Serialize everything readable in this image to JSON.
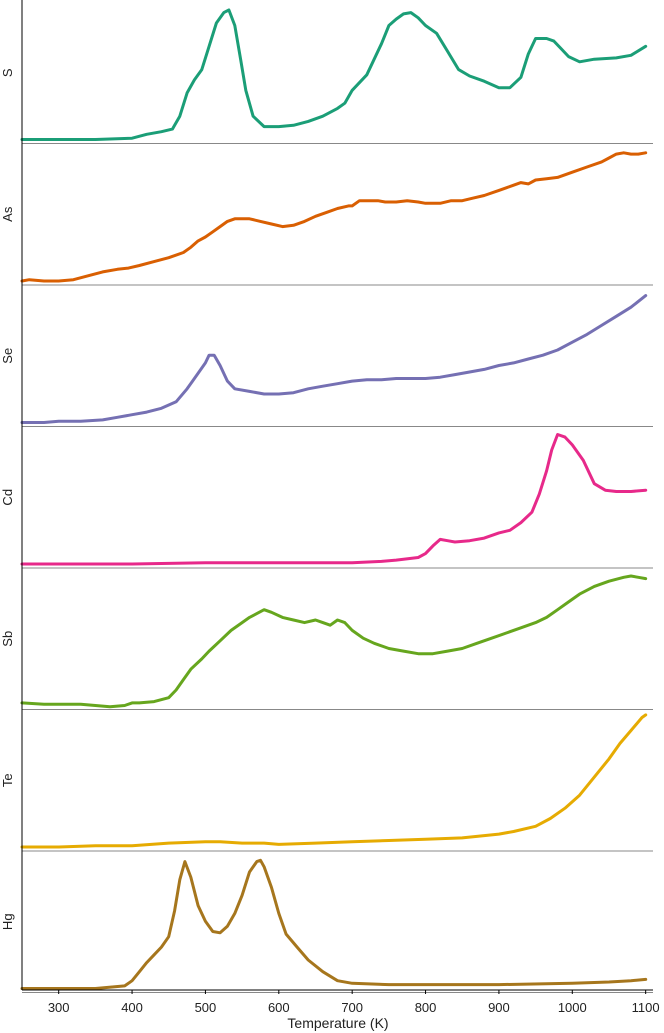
{
  "chart_data": {
    "type": "line",
    "xlabel": "Temperature (K)",
    "xlim": [
      250,
      1110
    ],
    "xticks": [
      300,
      400,
      500,
      600,
      700,
      800,
      900,
      1000,
      1100
    ],
    "grid": false,
    "series": [
      {
        "name": "S",
        "color": "#1b9e77",
        "x": [
          250,
          300,
          350,
          400,
          420,
          440,
          455,
          465,
          475,
          485,
          495,
          505,
          515,
          525,
          532,
          540,
          548,
          555,
          565,
          580,
          600,
          620,
          640,
          660,
          680,
          690,
          700,
          720,
          740,
          750,
          760,
          770,
          780,
          790,
          800,
          815,
          830,
          845,
          860,
          880,
          900,
          915,
          930,
          940,
          950,
          965,
          975,
          985,
          995,
          1010,
          1030,
          1060,
          1080,
          1100
        ],
        "y": [
          0,
          0,
          0,
          0.01,
          0.04,
          0.06,
          0.08,
          0.18,
          0.36,
          0.46,
          0.54,
          0.72,
          0.9,
          0.98,
          1.0,
          0.88,
          0.62,
          0.38,
          0.18,
          0.1,
          0.1,
          0.11,
          0.14,
          0.18,
          0.24,
          0.28,
          0.38,
          0.5,
          0.74,
          0.88,
          0.93,
          0.97,
          0.98,
          0.94,
          0.88,
          0.82,
          0.68,
          0.54,
          0.49,
          0.45,
          0.4,
          0.4,
          0.48,
          0.66,
          0.78,
          0.78,
          0.76,
          0.7,
          0.64,
          0.6,
          0.62,
          0.63,
          0.65,
          0.72
        ]
      },
      {
        "name": "As",
        "color": "#d95f02",
        "x": [
          250,
          260,
          280,
          300,
          320,
          340,
          360,
          380,
          395,
          410,
          430,
          450,
          470,
          480,
          490,
          500,
          510,
          520,
          530,
          540,
          550,
          560,
          575,
          590,
          605,
          620,
          635,
          650,
          665,
          680,
          695,
          700,
          710,
          720,
          735,
          745,
          760,
          775,
          790,
          800,
          815,
          820,
          835,
          850,
          865,
          880,
          900,
          910,
          920,
          930,
          940,
          950,
          965,
          980,
          1000,
          1020,
          1040,
          1050,
          1060,
          1070,
          1080,
          1090,
          1100
        ],
        "y": [
          0,
          0.01,
          0,
          0,
          0.01,
          0.04,
          0.07,
          0.09,
          0.1,
          0.12,
          0.15,
          0.18,
          0.22,
          0.26,
          0.31,
          0.34,
          0.38,
          0.42,
          0.46,
          0.48,
          0.48,
          0.48,
          0.46,
          0.44,
          0.42,
          0.43,
          0.46,
          0.5,
          0.53,
          0.56,
          0.58,
          0.58,
          0.62,
          0.62,
          0.62,
          0.61,
          0.61,
          0.62,
          0.61,
          0.6,
          0.6,
          0.6,
          0.62,
          0.62,
          0.64,
          0.66,
          0.7,
          0.72,
          0.74,
          0.76,
          0.75,
          0.78,
          0.79,
          0.8,
          0.84,
          0.88,
          0.92,
          0.95,
          0.98,
          0.99,
          0.98,
          0.98,
          0.99
        ]
      },
      {
        "name": "Se",
        "color": "#7570b3",
        "x": [
          250,
          280,
          300,
          330,
          360,
          380,
          400,
          420,
          440,
          460,
          475,
          490,
          500,
          505,
          512,
          520,
          530,
          540,
          560,
          580,
          600,
          620,
          640,
          660,
          680,
          700,
          720,
          740,
          760,
          780,
          800,
          820,
          840,
          860,
          880,
          900,
          920,
          940,
          960,
          980,
          1000,
          1020,
          1040,
          1060,
          1080,
          1100
        ],
        "y": [
          0,
          0,
          0.01,
          0.01,
          0.02,
          0.04,
          0.06,
          0.08,
          0.11,
          0.16,
          0.26,
          0.38,
          0.46,
          0.52,
          0.52,
          0.44,
          0.32,
          0.26,
          0.24,
          0.22,
          0.22,
          0.23,
          0.26,
          0.28,
          0.3,
          0.32,
          0.33,
          0.33,
          0.34,
          0.34,
          0.34,
          0.35,
          0.37,
          0.39,
          0.41,
          0.44,
          0.46,
          0.49,
          0.52,
          0.56,
          0.62,
          0.68,
          0.75,
          0.82,
          0.89,
          0.98
        ]
      },
      {
        "name": "Cd",
        "color": "#e7298a",
        "x": [
          250,
          300,
          400,
          500,
          600,
          650,
          700,
          740,
          760,
          790,
          800,
          810,
          820,
          830,
          840,
          860,
          880,
          900,
          915,
          930,
          945,
          955,
          965,
          972,
          980,
          990,
          1000,
          1015,
          1030,
          1045,
          1060,
          1080,
          1100
        ],
        "y": [
          0,
          0,
          0,
          0.01,
          0.01,
          0.01,
          0.01,
          0.02,
          0.03,
          0.05,
          0.08,
          0.14,
          0.19,
          0.18,
          0.17,
          0.18,
          0.2,
          0.24,
          0.26,
          0.32,
          0.4,
          0.54,
          0.72,
          0.88,
          1.0,
          0.98,
          0.92,
          0.8,
          0.62,
          0.57,
          0.56,
          0.56,
          0.57
        ]
      },
      {
        "name": "Sb",
        "color": "#66a61e",
        "x": [
          250,
          280,
          300,
          330,
          350,
          370,
          390,
          400,
          410,
          430,
          450,
          460,
          470,
          480,
          495,
          505,
          520,
          535,
          550,
          560,
          570,
          580,
          590,
          605,
          620,
          635,
          650,
          660,
          670,
          680,
          690,
          700,
          715,
          730,
          750,
          770,
          790,
          810,
          830,
          850,
          870,
          890,
          910,
          930,
          950,
          965,
          980,
          995,
          1010,
          1030,
          1050,
          1070,
          1080,
          1090,
          1100
        ],
        "y": [
          0.02,
          0.01,
          0.01,
          0.01,
          0,
          -0.01,
          0,
          0.02,
          0.02,
          0.03,
          0.06,
          0.12,
          0.2,
          0.28,
          0.36,
          0.42,
          0.5,
          0.58,
          0.64,
          0.68,
          0.71,
          0.74,
          0.72,
          0.68,
          0.66,
          0.64,
          0.66,
          0.64,
          0.62,
          0.66,
          0.64,
          0.58,
          0.52,
          0.48,
          0.44,
          0.42,
          0.4,
          0.4,
          0.42,
          0.44,
          0.48,
          0.52,
          0.56,
          0.6,
          0.64,
          0.68,
          0.74,
          0.8,
          0.86,
          0.92,
          0.96,
          0.99,
          1.0,
          0.99,
          0.98
        ]
      },
      {
        "name": "Te",
        "color": "#e6ab02",
        "x": [
          250,
          300,
          350,
          400,
          450,
          500,
          520,
          550,
          580,
          600,
          650,
          700,
          750,
          800,
          850,
          900,
          920,
          950,
          970,
          990,
          1010,
          1030,
          1050,
          1065,
          1080,
          1095,
          1100
        ],
        "y": [
          0,
          0,
          0.01,
          0.01,
          0.03,
          0.04,
          0.04,
          0.03,
          0.03,
          0.02,
          0.03,
          0.04,
          0.05,
          0.06,
          0.07,
          0.1,
          0.12,
          0.16,
          0.22,
          0.3,
          0.4,
          0.54,
          0.68,
          0.8,
          0.9,
          1.0,
          1.02
        ]
      },
      {
        "name": "Hg",
        "color": "#a6761d",
        "x": [
          250,
          300,
          350,
          390,
          400,
          410,
          420,
          430,
          440,
          450,
          458,
          465,
          472,
          480,
          490,
          500,
          510,
          520,
          530,
          540,
          550,
          560,
          570,
          575,
          580,
          590,
          600,
          610,
          625,
          640,
          660,
          680,
          700,
          750,
          800,
          900,
          1000,
          1050,
          1080,
          1100
        ],
        "y": [
          0,
          0,
          0,
          0.02,
          0.06,
          0.13,
          0.2,
          0.26,
          0.32,
          0.4,
          0.6,
          0.84,
          0.98,
          0.86,
          0.64,
          0.52,
          0.44,
          0.43,
          0.48,
          0.58,
          0.72,
          0.9,
          0.98,
          0.99,
          0.94,
          0.78,
          0.58,
          0.42,
          0.32,
          0.22,
          0.13,
          0.06,
          0.04,
          0.03,
          0.03,
          0.03,
          0.04,
          0.05,
          0.06,
          0.07
        ]
      }
    ]
  }
}
